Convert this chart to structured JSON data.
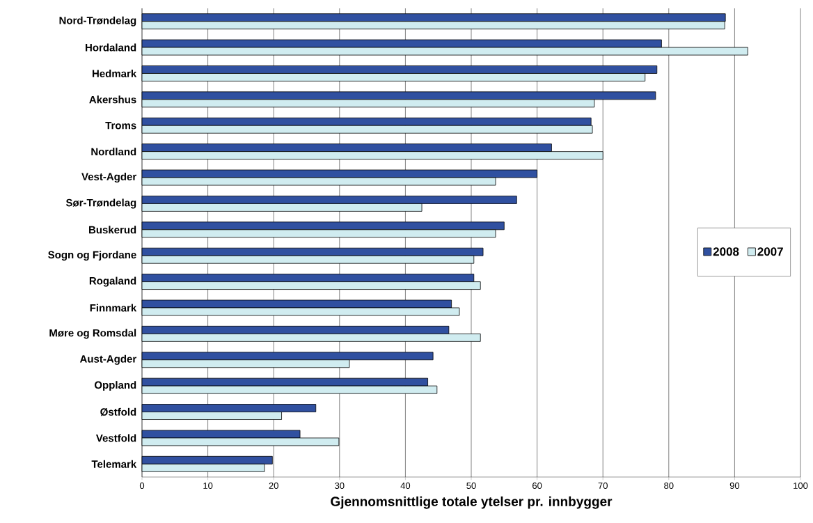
{
  "chart_data": {
    "type": "bar",
    "orientation": "horizontal",
    "xlabel": "Gjennomsnittlige totale ytelser pr. innbygger",
    "categories": [
      "Nord-Trøndelag",
      "Hordaland",
      "Hedmark",
      "Akershus",
      "Troms",
      "Nordland",
      "Vest-Agder",
      "Sør-Trøndelag",
      "Buskerud",
      "Sogn og Fjordane",
      "Rogaland",
      "Finnmark",
      "Møre og Romsdal",
      "Aust-Agder",
      "Oppland",
      "Østfold",
      "Vestfold",
      "Telemark"
    ],
    "series": [
      {
        "name": "2008",
        "color": "#3050a0",
        "values": [
          88.6,
          78.9,
          78.2,
          78,
          68.2,
          62.2,
          60,
          56.9,
          55,
          51.8,
          50.4,
          47,
          46.6,
          44.2,
          43.4,
          26.4,
          24,
          19.8
        ]
      },
      {
        "name": "2007",
        "color": "#d0ecf0",
        "values": [
          88.5,
          92,
          76.4,
          68.7,
          68.4,
          70,
          53.7,
          42.5,
          53.7,
          50.4,
          51.4,
          48.2,
          51.4,
          31.5,
          44.8,
          21.2,
          29.9,
          18.6
        ]
      }
    ],
    "xlim": [
      0,
      100
    ],
    "xticks": [
      0,
      10,
      20,
      30,
      40,
      50,
      60,
      70,
      80,
      90,
      100
    ],
    "grid": "x",
    "legend": "right"
  }
}
